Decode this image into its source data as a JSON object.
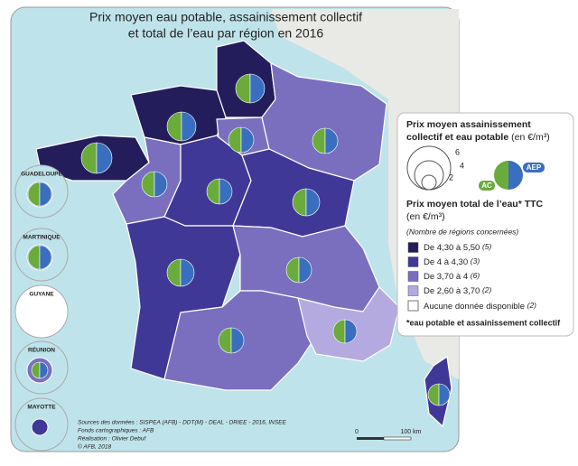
{
  "title": {
    "line1": "Prix moyen eau potable, assainissement collectif",
    "line2": "et total de l’eau par région en 2016"
  },
  "legend": {
    "pie_title_1": "Prix moyen assainissement",
    "pie_title_2": "collectif et eau potable",
    "pie_unit": "(en €/m³)",
    "sizes": [
      "6",
      "4",
      "2"
    ],
    "ac": "AC",
    "aep": "AEP",
    "total_title": "Prix moyen total de l’eau* TTC",
    "total_unit": "(en €/m³)",
    "note": "(Nombre de régions concernées)",
    "classes": [
      {
        "label": "De 4,30 à 5,50",
        "count": "(5)",
        "color": "#241d5c"
      },
      {
        "label": "De 4 à 4,30",
        "count": "(3)",
        "color": "#403896"
      },
      {
        "label": "De 3,70 à 4",
        "count": "(6)",
        "color": "#7a6fbe"
      },
      {
        "label": "De 2,60 à 3,70",
        "count": "(2)",
        "color": "#b4aadf"
      }
    ],
    "no_data": {
      "label": "Aucune donnée disponible",
      "count": "(2)"
    },
    "footnote": "*eau potable et assainissement collectif"
  },
  "overseas": [
    "GUADELOUPE",
    "MARTINIQUE",
    "GUYANE",
    "RÉUNION",
    "MAYOTTE"
  ],
  "sources": [
    "Sources des données : SISPEA (AFB) - DDT(M) - DEAL - DRIEE - 2016, INSEE",
    "Fonds cartographiques : AFB",
    "Réalisation : Olivier Debuf",
    "© AFB, 2018"
  ],
  "scale": {
    "zero": "0",
    "distance": "100 km"
  }
}
